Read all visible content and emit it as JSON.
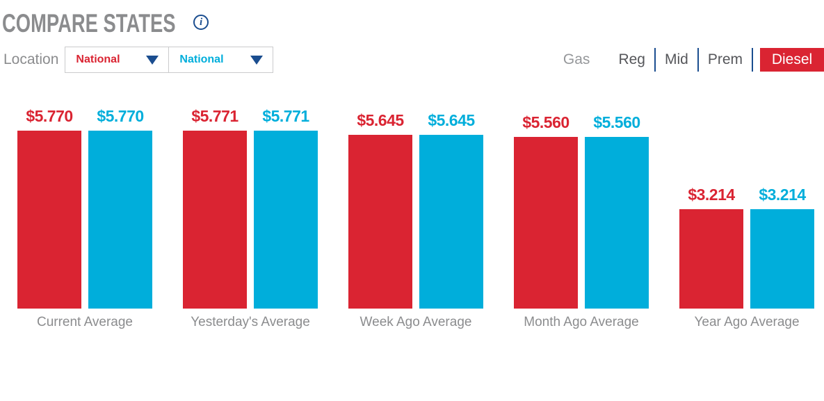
{
  "header": {
    "title": "COMPARE STATES",
    "info_icon_glyph": "i"
  },
  "controls": {
    "location_label": "Location",
    "dropdowns": [
      {
        "value": "National",
        "color": "#DA2432"
      },
      {
        "value": "National",
        "color": "#00AEDB"
      }
    ],
    "fuel": {
      "group_label": "Gas",
      "options": [
        "Reg",
        "Mid",
        "Prem"
      ],
      "selected": "Diesel"
    }
  },
  "colors": {
    "red": "#DA2432",
    "cyan": "#00AEDB",
    "navy": "#1A4D8F",
    "gray": "#8B8C8E",
    "dark": "#55565A",
    "lightgray": "#95979A",
    "border": "#CACBCC",
    "white": "#FFFFFF"
  },
  "chart_data": {
    "type": "bar",
    "title": "Compare States - Diesel Prices",
    "categories": [
      "Current Average",
      "Yesterday's Average",
      "Week Ago Average",
      "Month Ago Average",
      "Year Ago Average"
    ],
    "series": [
      {
        "name": "National",
        "color": "#DA2432",
        "values": [
          5.77,
          5.771,
          5.645,
          5.56,
          3.214
        ],
        "labels": [
          "$5.770",
          "$5.771",
          "$5.645",
          "$5.560",
          "$3.214"
        ]
      },
      {
        "name": "National",
        "color": "#00AEDB",
        "values": [
          5.77,
          5.771,
          5.645,
          5.56,
          3.214
        ],
        "labels": [
          "$5.770",
          "$5.771",
          "$5.645",
          "$5.560",
          "$3.214"
        ]
      }
    ],
    "ylim": [
      0,
      5.771
    ],
    "grid": false,
    "legend": "none",
    "value_prefix": "$"
  }
}
